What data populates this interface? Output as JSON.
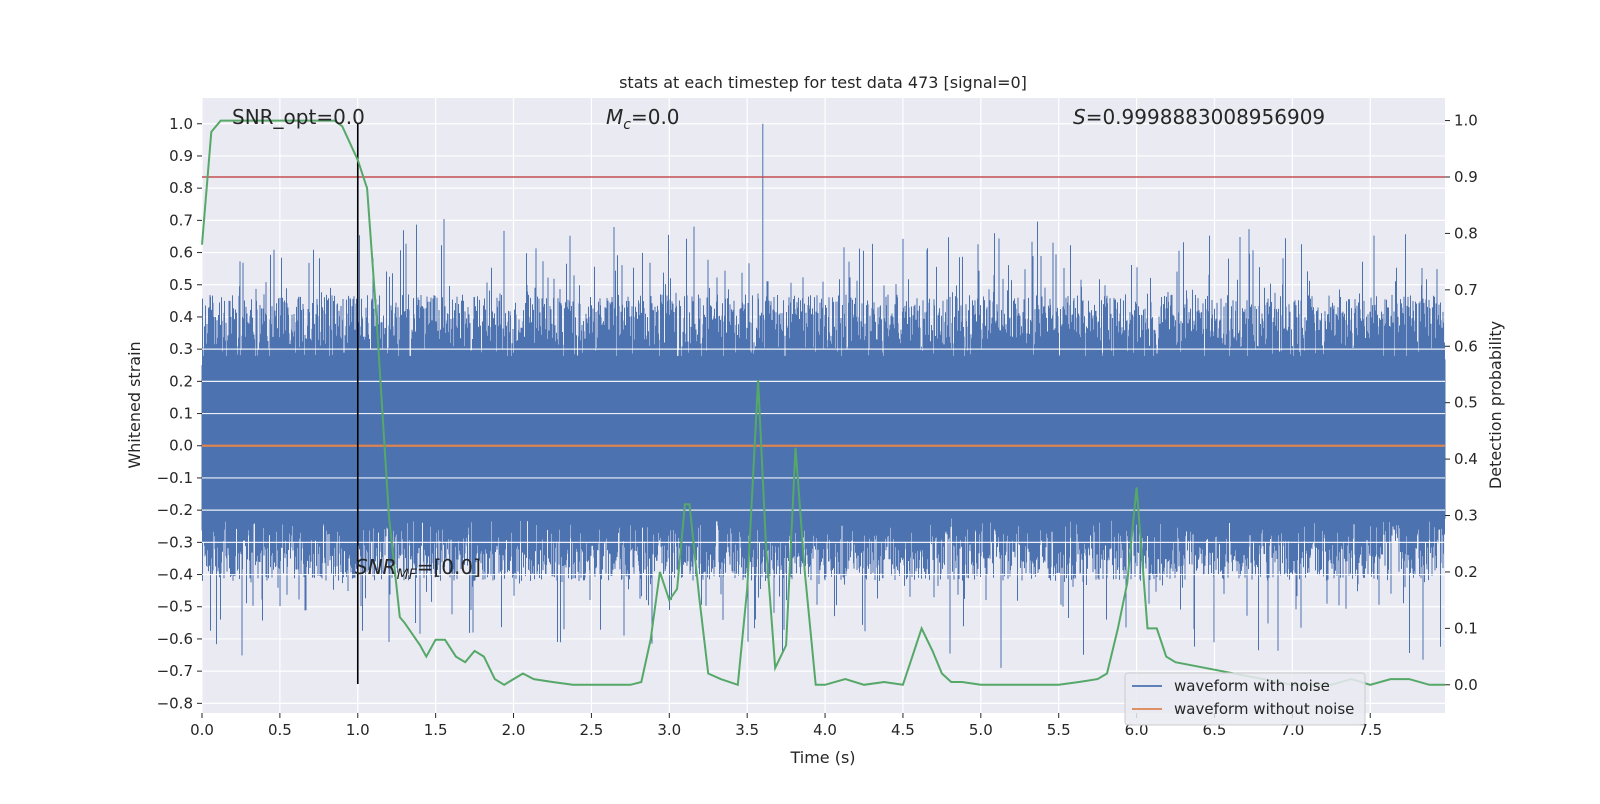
{
  "chart_data": {
    "type": "line",
    "title": "stats at each timestep for test data 473 [signal=0]",
    "xlabel": "Time (s)",
    "ylabel_left": "Whitened strain",
    "ylabel_right": "Detection probability",
    "xlim": [
      0.0,
      7.98
    ],
    "ylim_left": [
      -0.83,
      1.08
    ],
    "ylim_right": [
      -0.05,
      1.04
    ],
    "x_ticks": [
      "0.0",
      "0.5",
      "1.0",
      "1.5",
      "2.0",
      "2.5",
      "3.0",
      "3.5",
      "4.0",
      "4.5",
      "5.0",
      "5.5",
      "6.0",
      "6.5",
      "7.0",
      "7.5"
    ],
    "y_ticks_left": [
      "1.0",
      "0.9",
      "0.8",
      "0.7",
      "0.6",
      "0.5",
      "0.4",
      "0.3",
      "0.2",
      "0.1",
      "0.0",
      "−0.1",
      "−0.2",
      "−0.3",
      "−0.4",
      "−0.5",
      "−0.6",
      "−0.7",
      "−0.8"
    ],
    "y_ticks_right": [
      "1.0",
      "0.9",
      "0.8",
      "0.7",
      "0.6",
      "0.5",
      "0.4",
      "0.3",
      "0.2",
      "0.1",
      "0.0"
    ],
    "grid": true,
    "legend_position": "bottom-right",
    "annotations": {
      "snr_opt": "SNR_opt=0.0",
      "mc_sym": "M",
      "mc_sub": "c",
      "mc_val": "=0.0",
      "s_sym": "S",
      "s_val": "=0.9998883008956909",
      "snr_mf_sym": "SNR",
      "snr_mf_sub": "MF",
      "snr_mf_val": "=[0.0]"
    },
    "vline_x": 1.0,
    "threshold_right": 0.9,
    "series": [
      {
        "name": "waveform with noise",
        "axis": "left",
        "color": "#4c72b0",
        "envelope": {
          "typical_upper": 0.45,
          "typical_lower": -0.45,
          "max_spike": 1.0,
          "max_spike_x": 3.6,
          "min_spike": -0.74
        }
      },
      {
        "name": "waveform without noise",
        "axis": "left",
        "color": "#dd8452",
        "values_constant": 0.0
      },
      {
        "name": "",
        "axis": "right",
        "color": "#55a868",
        "x": [
          0.0,
          0.06,
          0.12,
          0.2,
          0.3,
          0.4,
          0.5,
          0.6,
          0.7,
          0.8,
          0.85,
          0.9,
          1.0,
          1.06,
          1.12,
          1.2,
          1.27,
          1.3,
          1.4,
          1.44,
          1.5,
          1.56,
          1.63,
          1.69,
          1.75,
          1.81,
          1.88,
          1.94,
          2.0,
          2.06,
          2.13,
          2.25,
          2.38,
          2.5,
          2.75,
          2.82,
          2.88,
          2.94,
          3.0,
          3.05,
          3.1,
          3.13,
          3.19,
          3.25,
          3.33,
          3.44,
          3.5,
          3.57,
          3.62,
          3.68,
          3.75,
          3.81,
          3.87,
          3.94,
          4.0,
          4.13,
          4.25,
          4.38,
          4.5,
          4.56,
          4.62,
          4.69,
          4.75,
          4.81,
          4.88,
          5.0,
          5.13,
          5.25,
          5.5,
          5.63,
          5.75,
          5.81,
          5.88,
          5.94,
          6.0,
          6.07,
          6.13,
          6.19,
          6.25,
          7.0,
          7.25,
          7.38,
          7.5,
          7.63,
          7.75,
          7.88,
          7.98
        ],
        "y": [
          0.78,
          0.98,
          1.0,
          1.0,
          1.0,
          1.0,
          1.0,
          1.0,
          1.0,
          1.0,
          1.0,
          0.99,
          0.93,
          0.88,
          0.65,
          0.3,
          0.12,
          0.11,
          0.07,
          0.05,
          0.08,
          0.08,
          0.05,
          0.04,
          0.06,
          0.05,
          0.01,
          0.0,
          0.01,
          0.02,
          0.01,
          0.005,
          0.0,
          0.0,
          0.0,
          0.005,
          0.08,
          0.2,
          0.15,
          0.17,
          0.32,
          0.32,
          0.16,
          0.02,
          0.01,
          0.0,
          0.17,
          0.54,
          0.25,
          0.03,
          0.07,
          0.42,
          0.2,
          0.0,
          0.0,
          0.01,
          0.0,
          0.005,
          0.0,
          0.05,
          0.1,
          0.06,
          0.02,
          0.005,
          0.005,
          0.0,
          0.0,
          0.0,
          0.0,
          0.005,
          0.01,
          0.02,
          0.1,
          0.18,
          0.35,
          0.1,
          0.1,
          0.05,
          0.04,
          0.0,
          0.0,
          0.01,
          0.0,
          0.01,
          0.01,
          0.0,
          0.0
        ]
      }
    ]
  }
}
